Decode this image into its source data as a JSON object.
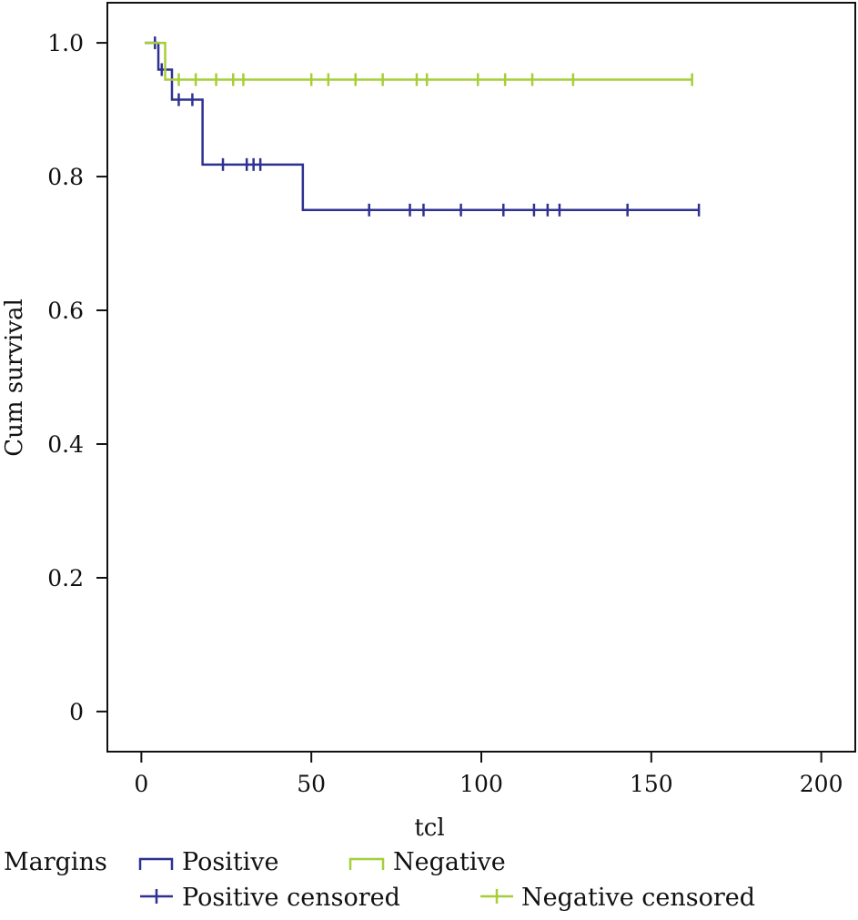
{
  "chart_data": {
    "type": "line",
    "subtype": "kaplan-meier",
    "title": "",
    "xlabel": "tcl",
    "ylabel": "Cum survival",
    "xlim": [
      -10,
      210
    ],
    "ylim": [
      -0.06,
      1.06
    ],
    "xticks": [
      0,
      50,
      100,
      150,
      200
    ],
    "xtick_labels": [
      "0",
      "50",
      "100",
      "150",
      "200"
    ],
    "yticks": [
      0,
      0.2,
      0.4,
      0.6,
      0.8,
      1.0
    ],
    "ytick_labels": [
      "0",
      "0.2",
      "0.4",
      "0.6",
      "0.8",
      "1.0"
    ],
    "legend": {
      "title": "Margins",
      "placement": "bottom",
      "entries": [
        {
          "label": "Positive",
          "kind": "step",
          "series": "positive"
        },
        {
          "label": "Negative",
          "kind": "step",
          "series": "negative"
        },
        {
          "label": "Positive censored",
          "kind": "censor",
          "series": "positive"
        },
        {
          "label": "Negative censored",
          "kind": "censor",
          "series": "negative"
        }
      ]
    },
    "series": [
      {
        "id": "positive",
        "name": "Positive",
        "color": "#2e3192",
        "steps": [
          {
            "x": 1,
            "y": 1.0
          },
          {
            "x": 5,
            "y": 0.96
          },
          {
            "x": 9,
            "y": 0.915
          },
          {
            "x": 18,
            "y": 0.818
          },
          {
            "x": 47.5,
            "y": 0.75
          }
        ],
        "end_x": 164,
        "censored": [
          {
            "x": 4,
            "y": 1.0
          },
          {
            "x": 6,
            "y": 0.96
          },
          {
            "x": 11,
            "y": 0.915
          },
          {
            "x": 15,
            "y": 0.915
          },
          {
            "x": 24,
            "y": 0.818
          },
          {
            "x": 31,
            "y": 0.818
          },
          {
            "x": 33,
            "y": 0.818
          },
          {
            "x": 35,
            "y": 0.818
          },
          {
            "x": 67,
            "y": 0.75
          },
          {
            "x": 79,
            "y": 0.75
          },
          {
            "x": 83,
            "y": 0.75
          },
          {
            "x": 94,
            "y": 0.75
          },
          {
            "x": 106.5,
            "y": 0.75
          },
          {
            "x": 115.5,
            "y": 0.75
          },
          {
            "x": 119.5,
            "y": 0.75
          },
          {
            "x": 123,
            "y": 0.75
          },
          {
            "x": 143,
            "y": 0.75
          },
          {
            "x": 164,
            "y": 0.75
          }
        ]
      },
      {
        "id": "negative",
        "name": "Negative",
        "color": "#a6ce39",
        "steps": [
          {
            "x": 1,
            "y": 1.0
          },
          {
            "x": 7,
            "y": 0.945
          }
        ],
        "end_x": 162,
        "censored": [
          {
            "x": 11,
            "y": 0.945
          },
          {
            "x": 16,
            "y": 0.945
          },
          {
            "x": 22,
            "y": 0.945
          },
          {
            "x": 27,
            "y": 0.945
          },
          {
            "x": 30,
            "y": 0.945
          },
          {
            "x": 50,
            "y": 0.945
          },
          {
            "x": 55,
            "y": 0.945
          },
          {
            "x": 63,
            "y": 0.945
          },
          {
            "x": 71,
            "y": 0.945
          },
          {
            "x": 81,
            "y": 0.945
          },
          {
            "x": 84,
            "y": 0.945
          },
          {
            "x": 99,
            "y": 0.945
          },
          {
            "x": 107,
            "y": 0.945
          },
          {
            "x": 115,
            "y": 0.945
          },
          {
            "x": 127,
            "y": 0.945
          },
          {
            "x": 162,
            "y": 0.945
          }
        ]
      }
    ]
  }
}
